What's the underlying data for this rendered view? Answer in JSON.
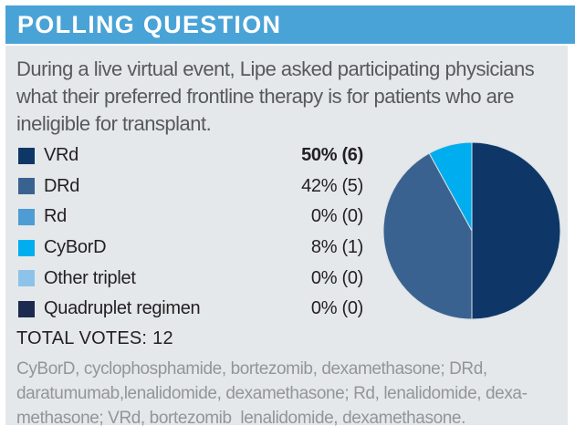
{
  "header": {
    "title": "POLLING QUESTION"
  },
  "question": "During a live virtual event, Lipe asked participating physicians what their preferred frontline therapy is for patients who are ineligible for transplant.",
  "chart_data": {
    "type": "pie",
    "title": "Preferred frontline therapy for transplant-ineligible patients",
    "categories": [
      "VRd",
      "DRd",
      "Rd",
      "CyBorD",
      "Other triplet",
      "Quadruplet regimen"
    ],
    "values": [
      50,
      42,
      0,
      8,
      0,
      0
    ],
    "counts": [
      6,
      5,
      0,
      1,
      0,
      0
    ],
    "value_labels": [
      "50% (6)",
      "42% (5)",
      "0% (0)",
      "8% (1)",
      "0% (0)",
      "0% (0)"
    ],
    "colors": [
      "#0e3768",
      "#3a6290",
      "#4d9cd3",
      "#00aeef",
      "#8dc3e9",
      "#1b2a4e"
    ],
    "bold_value_index": 0,
    "total": 100,
    "start_angle_deg": 0,
    "direction": "clockwise",
    "legend_position": "left"
  },
  "totals": {
    "label": "TOTAL VOTES:",
    "value": "12"
  },
  "footnote": {
    "lines": [
      "CyBorD, cyclophosphamide, bortezomib, dexamethasone; DRd,",
      "daratumumab,lenalidomide, dexamethasone; Rd, lenalidomide, dexa-",
      "methasone; VRd, bortezomib  lenalidomide, dexamethasone."
    ]
  },
  "theme": {
    "header_bar_bg": "#4aa3d6",
    "header_title_color": "#ffffff",
    "panel_bg": "#e4e8eb",
    "question_text_color": "#58595b",
    "body_text_color": "#231f20",
    "footnote_text_color": "#939598",
    "pie_separator_color": "#d9e0e4"
  }
}
